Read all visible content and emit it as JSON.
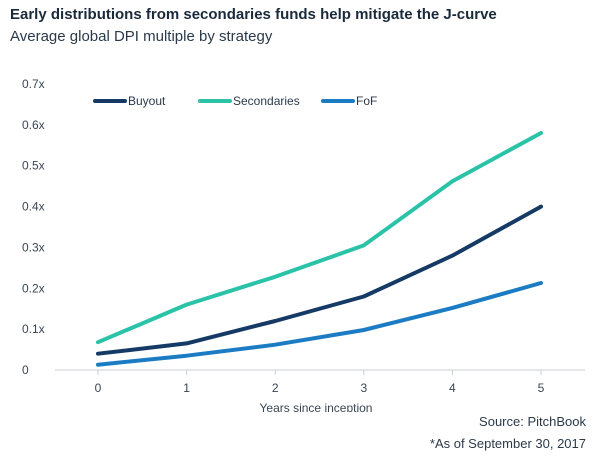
{
  "header": {
    "title": "Early distributions from secondaries funds help mitigate the J-curve",
    "subtitle": "Average global DPI multiple by strategy"
  },
  "footer": {
    "source": "Source: PitchBook",
    "note": "*As of September 30, 2017"
  },
  "chart_data": {
    "type": "line",
    "title": "Early distributions from secondaries funds help mitigate the J-curve",
    "subtitle": "Average global DPI multiple by strategy",
    "xlabel": "Years since inception",
    "ylabel": "",
    "x": [
      0,
      1,
      2,
      3,
      4,
      5
    ],
    "x_tick_labels": [
      "0",
      "1",
      "2",
      "3",
      "4",
      "5"
    ],
    "ylim": [
      0,
      0.7
    ],
    "y_ticks": [
      0,
      0.1,
      0.2,
      0.3,
      0.4,
      0.5,
      0.6,
      0.7
    ],
    "y_tick_labels": [
      "0",
      "0.1x",
      "0.2x",
      "0.3x",
      "0.4x",
      "0.5x",
      "0.6x",
      "0.7x"
    ],
    "grid": false,
    "legend_position": "top-left",
    "series": [
      {
        "name": "Buyout",
        "color": "#153a66",
        "values": [
          0.04,
          0.065,
          0.12,
          0.18,
          0.28,
          0.4
        ]
      },
      {
        "name": "Secondaries",
        "color": "#2bc3a8",
        "values": [
          0.068,
          0.16,
          0.228,
          0.305,
          0.462,
          0.58
        ]
      },
      {
        "name": "FoF",
        "color": "#1b7cc4",
        "values": [
          0.013,
          0.035,
          0.062,
          0.098,
          0.152,
          0.213
        ]
      }
    ]
  }
}
